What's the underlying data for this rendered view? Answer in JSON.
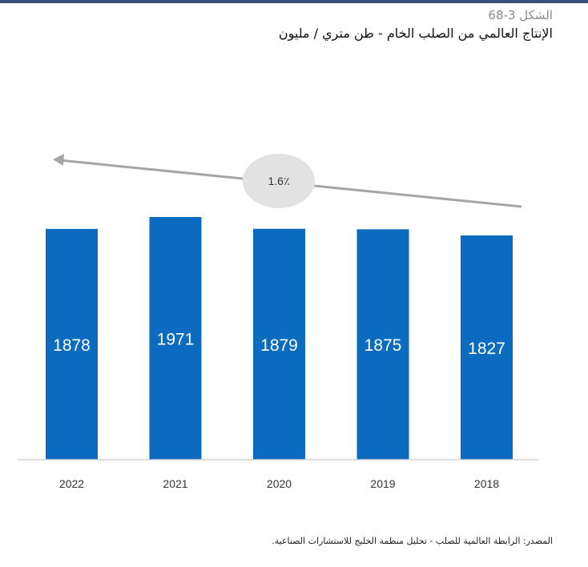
{
  "figure": {
    "number": "الشكل 3-68",
    "title": "الإنتاج العالمي من الصلب الخام - طن متري / مليون"
  },
  "annotation": {
    "label": "1.6٪"
  },
  "source": "المصدر: الرابطة العالمية للصلب - تحليل منظمة الخليج للاستشارات الصناعية.",
  "colors": {
    "bar": "#0b6cbf",
    "bar_label": "#ffffff",
    "arrow": "#a6a6a6",
    "bubble": "#e2e2e2",
    "axis": "#d0d0d0",
    "tick": "#333333"
  },
  "chart_data": {
    "type": "bar",
    "categories": [
      "2022",
      "2021",
      "2020",
      "2019",
      "2018"
    ],
    "values": [
      1878,
      1971,
      1879,
      1875,
      1827
    ],
    "title": "الإنتاج العالمي من الصلب الخام - طن متري / مليون",
    "xlabel": "",
    "ylabel": "",
    "ylim": [
      0,
      2000
    ],
    "grid": false,
    "legend": "none",
    "data_labels": true
  }
}
